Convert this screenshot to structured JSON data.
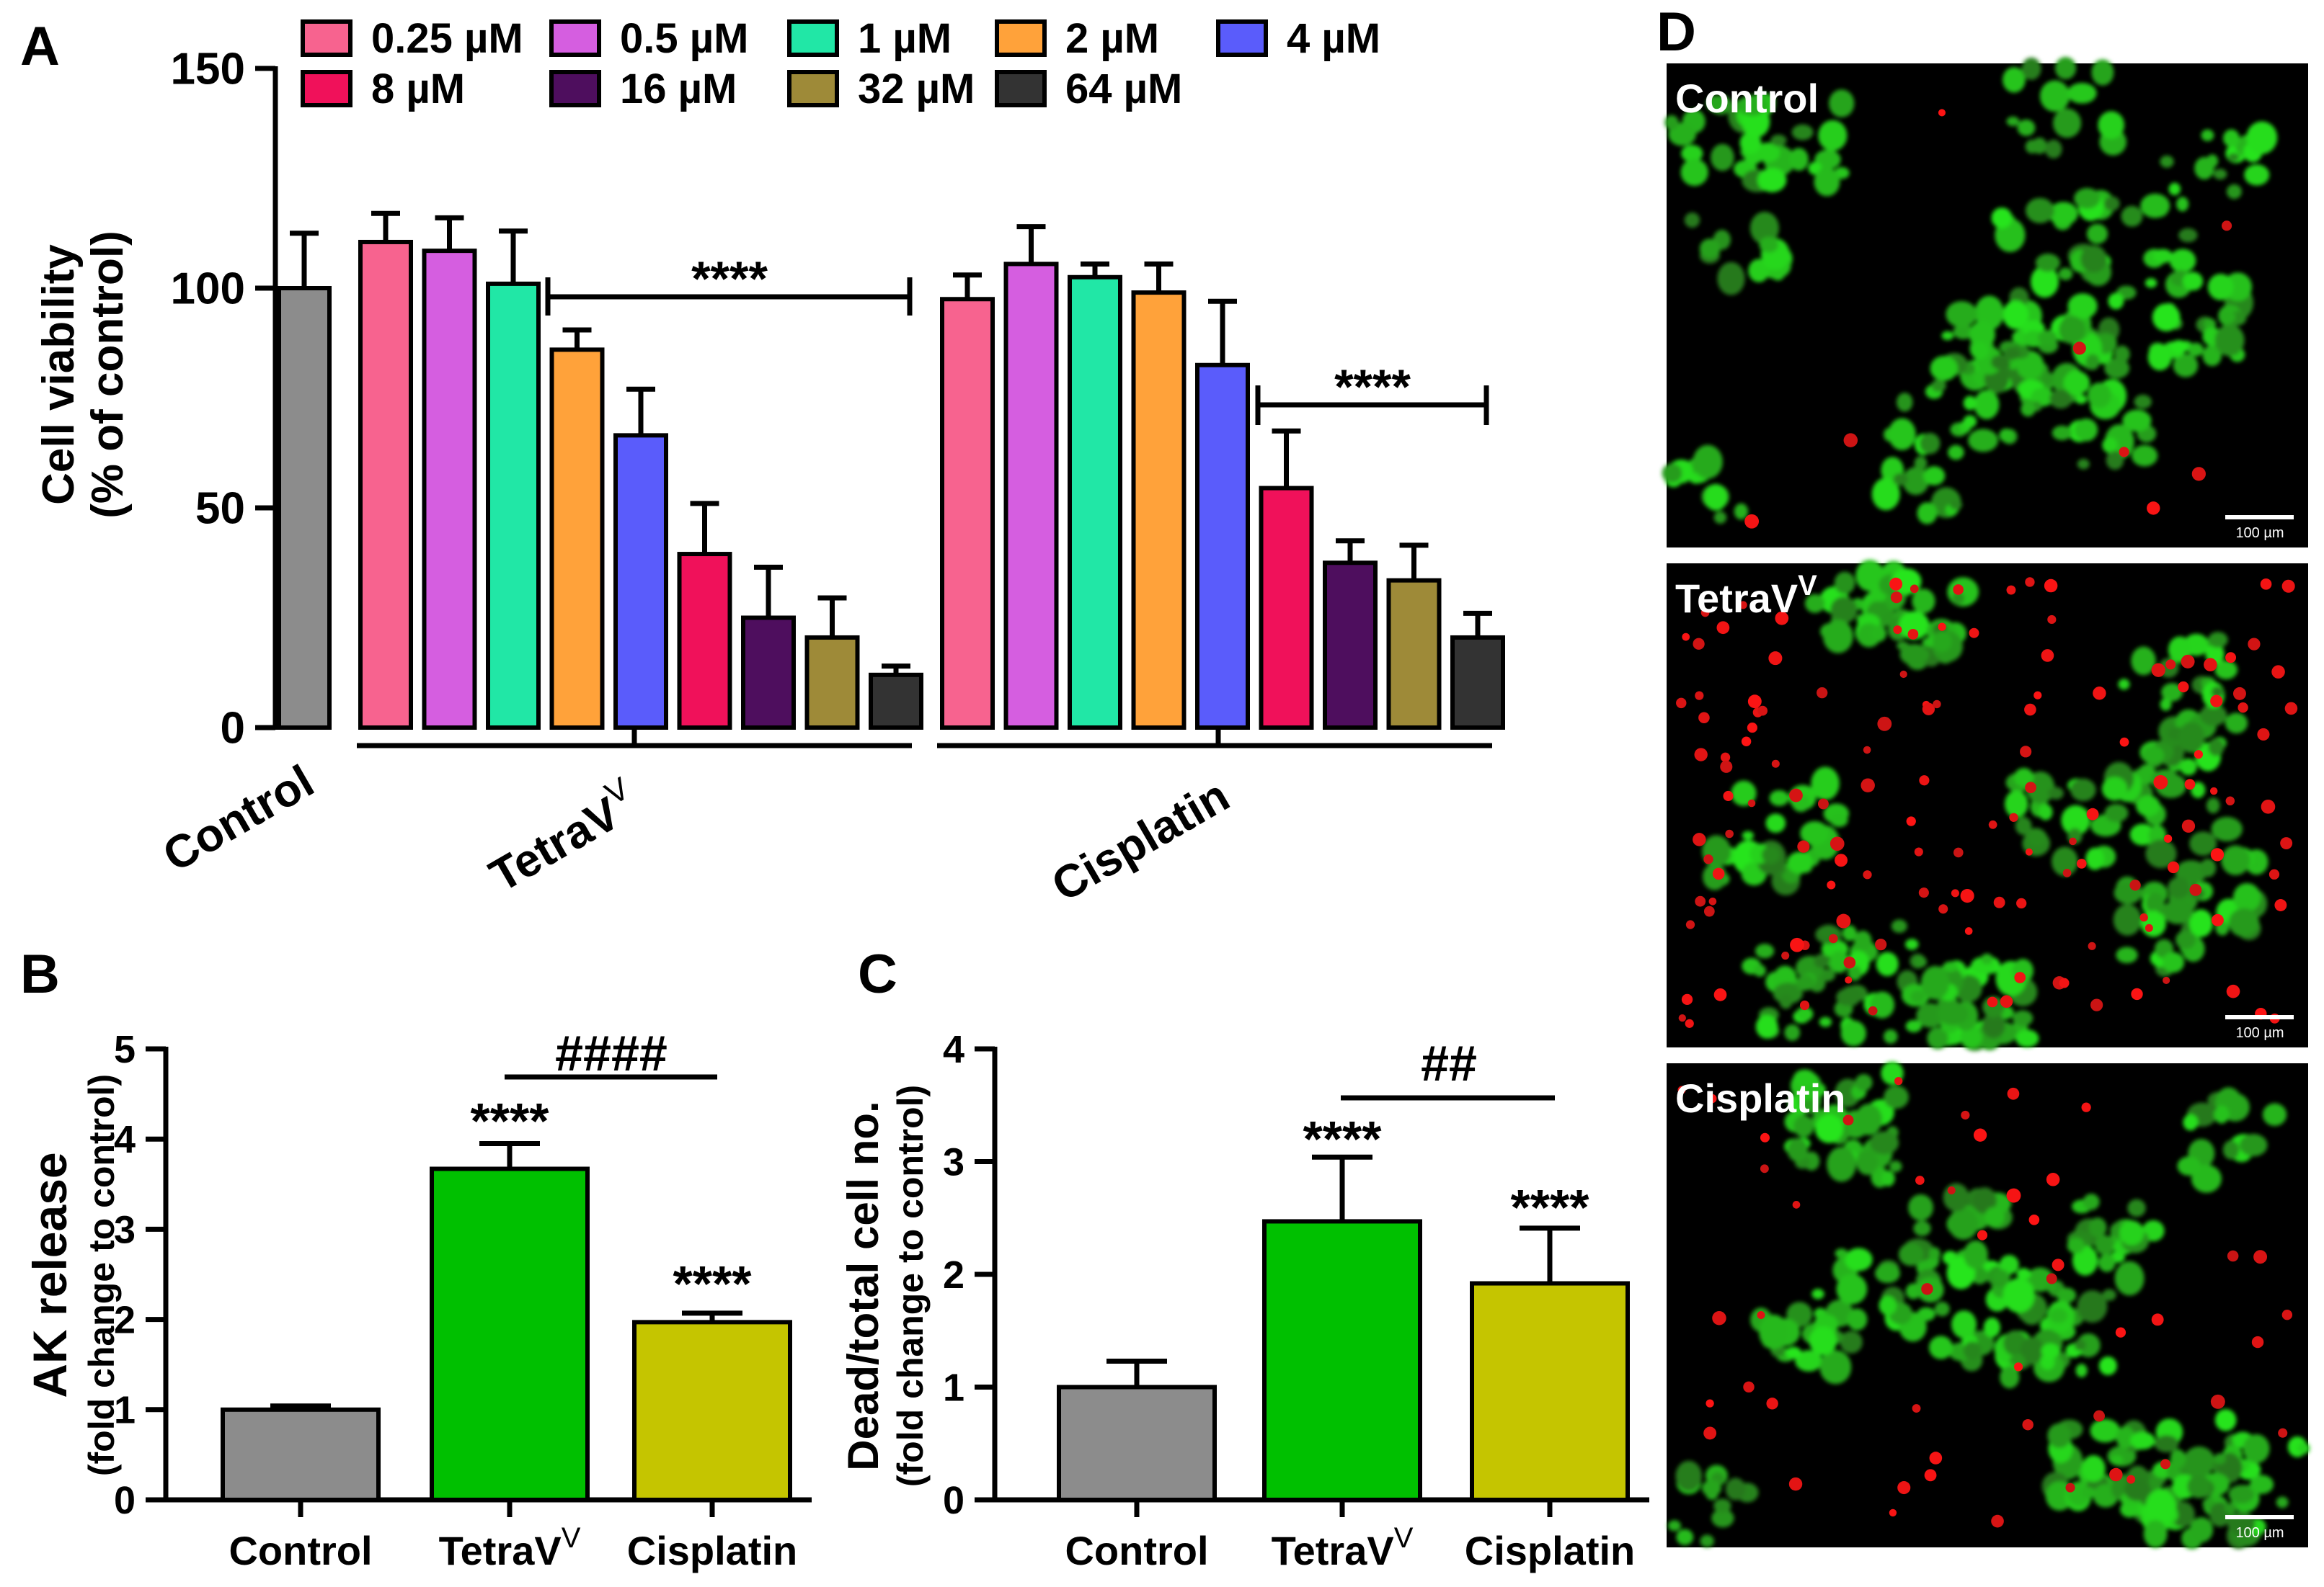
{
  "panels": {
    "A": {
      "letter": "A",
      "ylabel_main": "Cell viability",
      "ylabel_sub": "(% of control)",
      "group_labels": {
        "control": "Control",
        "tetra_base": "TetraV",
        "tetra_sup": "V",
        "cisplatin": "Cisplatin"
      },
      "sig_tetra": "****",
      "sig_cis": "****"
    },
    "B": {
      "letter": "B",
      "ylabel_main": "AK release",
      "ylabel_sub": "(fold change to control)",
      "sig_tetra": "****",
      "sig_cis": "****",
      "hash": "####"
    },
    "C": {
      "letter": "C",
      "ylabel_main": "Dead/total cell no.",
      "ylabel_sub": "(fold change to control)",
      "sig_tetra": "****",
      "sig_cis": "****",
      "hash": "##"
    },
    "D": {
      "letter": "D",
      "images": [
        {
          "label": "Control",
          "sup": "",
          "scale": "100 µm",
          "red_level": 0.02
        },
        {
          "label": "TetraV",
          "sup": "V",
          "scale": "100 µm",
          "red_level": 0.35
        },
        {
          "label": "Cisplatin",
          "sup": "",
          "scale": "100 µm",
          "red_level": 0.12
        }
      ]
    }
  },
  "chart_data": [
    {
      "panel": "A",
      "type": "bar",
      "ylabel": "Cell viability (% of control)",
      "ylim": [
        0,
        150
      ],
      "yticks": [
        0,
        50,
        100,
        150
      ],
      "legend_placement": "top",
      "legend": [
        {
          "name": "0.25 µM",
          "color": "#f7638f"
        },
        {
          "name": "0.5 µM",
          "color": "#d55ee0"
        },
        {
          "name": "1 µM",
          "color": "#21e7a6"
        },
        {
          "name": "2 µM",
          "color": "#ffa23a"
        },
        {
          "name": "4 µM",
          "color": "#5a5cfb"
        },
        {
          "name": "8 µM",
          "color": "#f0115a"
        },
        {
          "name": "16 µM",
          "color": "#4e0e5e"
        },
        {
          "name": "32 µM",
          "color": "#9e8a38"
        },
        {
          "name": "64 µM",
          "color": "#333333"
        }
      ],
      "control": {
        "value": 100,
        "error": 12.5,
        "color": "#8c8c8c"
      },
      "series": [
        {
          "name": "TetraV",
          "values": [
            110.5,
            108.5,
            101,
            86,
            66.5,
            39.5,
            25,
            20.5,
            12
          ],
          "errors": [
            6.5,
            7.5,
            12,
            4.5,
            10.5,
            11.5,
            11.5,
            9,
            2
          ]
        },
        {
          "name": "Cisplatin",
          "values": [
            97.5,
            105.5,
            102.5,
            99,
            82.5,
            54.5,
            37.5,
            33.5,
            20.5
          ],
          "errors": [
            5.5,
            8.5,
            3,
            6.5,
            14.5,
            13,
            5,
            8,
            5.5
          ]
        }
      ]
    },
    {
      "panel": "B",
      "type": "bar",
      "ylabel": "AK release (fold change to control)",
      "categories": [
        "Control",
        "TetraV",
        "Cisplatin"
      ],
      "category_sup": [
        "",
        "V",
        ""
      ],
      "values": [
        1.0,
        3.67,
        1.97
      ],
      "errors": [
        0.04,
        0.28,
        0.1
      ],
      "colors": [
        "#8c8c8c",
        "#00c000",
        "#c5c500"
      ],
      "ylim": [
        0,
        5
      ],
      "yticks": [
        0,
        1,
        2,
        3,
        4,
        5
      ]
    },
    {
      "panel": "C",
      "type": "bar",
      "ylabel": "Dead/total cell no. (fold change to control)",
      "categories": [
        "Control",
        "TetraV",
        "Cisplatin"
      ],
      "category_sup": [
        "",
        "V",
        ""
      ],
      "values": [
        1.0,
        2.47,
        1.92
      ],
      "errors": [
        0.23,
        0.57,
        0.49
      ],
      "colors": [
        "#8c8c8c",
        "#00c000",
        "#c5c500"
      ],
      "ylim": [
        0,
        4
      ],
      "yticks": [
        0,
        1,
        2,
        3,
        4
      ]
    }
  ]
}
